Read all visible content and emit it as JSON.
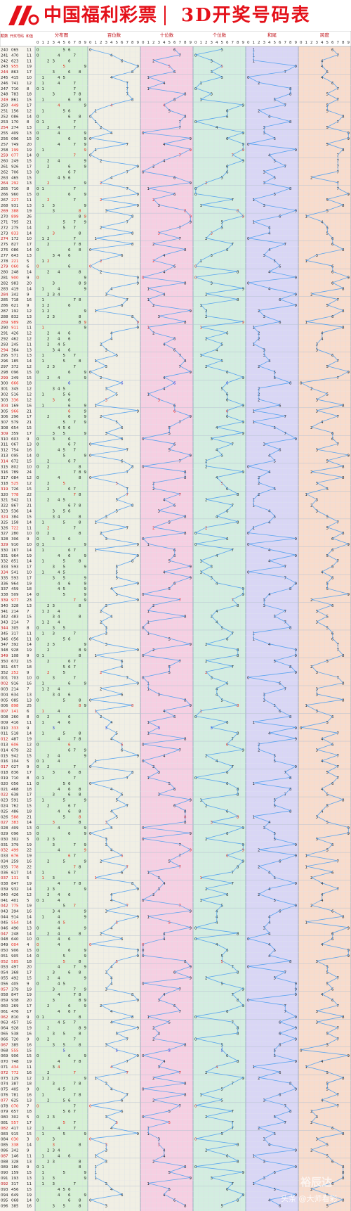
{
  "header": {
    "brand": "中国福利彩票",
    "title": "3D开奖号码表"
  },
  "watermark": {
    "line1": "裕辰达",
    "line2": "头条 @大师看彩"
  },
  "colors": {
    "brand_red": "#e4111a",
    "line": "#4a9df0",
    "red_digit": "#e8231b",
    "blue_digit": "#2323d8"
  },
  "chart_data": {
    "type": "table",
    "columns": {
      "issue": "期数",
      "number": "开奖号码",
      "sum": "和值",
      "zones": [
        "分布图",
        "百位数",
        "十位数",
        "个位数",
        "和尾",
        "跨度"
      ]
    },
    "digits": [
      "0",
      "1",
      "2",
      "3",
      "4",
      "5",
      "6",
      "7",
      "8",
      "9"
    ],
    "rows": [
      [
        "240",
        "065"
      ],
      [
        "241",
        "470"
      ],
      [
        "242",
        "623"
      ],
      [
        "243",
        "955"
      ],
      [
        "244",
        "863"
      ],
      [
        "245",
        "415"
      ],
      [
        "246",
        "741"
      ],
      [
        "247",
        "710"
      ],
      [
        "248",
        "783"
      ],
      [
        "249",
        "861"
      ],
      [
        "250",
        "449"
      ],
      [
        "251",
        "156"
      ],
      [
        "252",
        "086"
      ],
      [
        "253",
        "170"
      ],
      [
        "254",
        "274"
      ],
      [
        "255",
        "409"
      ],
      [
        "256",
        "096"
      ],
      [
        "257",
        "749"
      ],
      [
        "258",
        "199"
      ],
      [
        "259",
        "077"
      ],
      [
        "260",
        "249"
      ],
      [
        "261",
        "926"
      ],
      [
        "262",
        "706"
      ],
      [
        "263",
        "465"
      ],
      [
        "264",
        "292"
      ],
      [
        "265",
        "710"
      ],
      [
        "266",
        "960"
      ],
      [
        "267",
        "227"
      ],
      [
        "268",
        "931"
      ],
      [
        "269",
        "388"
      ],
      [
        "270",
        "899"
      ],
      [
        "271",
        "795"
      ],
      [
        "272",
        "275"
      ],
      [
        "273",
        "833"
      ],
      [
        "274",
        "172"
      ],
      [
        "275",
        "827"
      ],
      [
        "276",
        "086"
      ],
      [
        "277",
        "643"
      ],
      [
        "278",
        "221"
      ],
      [
        "279",
        "060"
      ],
      [
        "280",
        "248"
      ],
      [
        "281",
        "900"
      ],
      [
        "282",
        "983"
      ],
      [
        "283",
        "419"
      ],
      [
        "284",
        "342"
      ],
      [
        "285",
        "718"
      ],
      [
        "286",
        "621"
      ],
      [
        "287",
        "192"
      ],
      [
        "288",
        "832"
      ],
      [
        "289",
        "989"
      ],
      [
        "290",
        "911"
      ],
      [
        "291",
        "426"
      ],
      [
        "292",
        "462"
      ],
      [
        "293",
        "245"
      ],
      [
        "294",
        "364"
      ],
      [
        "295",
        "571"
      ],
      [
        "296",
        "185"
      ],
      [
        "297",
        "372"
      ],
      [
        "298",
        "096"
      ],
      [
        "299",
        "249"
      ],
      [
        "300",
        "666"
      ],
      [
        "301",
        "345"
      ],
      [
        "302",
        "516"
      ],
      [
        "303",
        "336"
      ],
      [
        "304",
        "169"
      ],
      [
        "305",
        "966"
      ],
      [
        "306",
        "296"
      ],
      [
        "307",
        "579"
      ],
      [
        "308",
        "654"
      ],
      [
        "309",
        "359"
      ],
      [
        "310",
        "603"
      ],
      [
        "311",
        "067"
      ],
      [
        "312",
        "754"
      ],
      [
        "313",
        "095"
      ],
      [
        "314",
        "672"
      ],
      [
        "315",
        "802"
      ],
      [
        "316",
        "789"
      ],
      [
        "317",
        "084"
      ],
      [
        "318",
        "525"
      ],
      [
        "319",
        "726"
      ],
      [
        "320",
        "778"
      ],
      [
        "321",
        "542"
      ],
      [
        "322",
        "867"
      ],
      [
        "323",
        "536"
      ],
      [
        "324",
        "384"
      ],
      [
        "325",
        "158"
      ],
      [
        "326",
        "722"
      ],
      [
        "327",
        "280"
      ],
      [
        "328",
        "306"
      ],
      [
        "329",
        "910"
      ],
      [
        "330",
        "167"
      ],
      [
        "331",
        "964"
      ],
      [
        "332",
        "851"
      ],
      [
        "333",
        "593"
      ],
      [
        "334",
        "541"
      ],
      [
        "335",
        "593"
      ],
      [
        "336",
        "964"
      ],
      [
        "337",
        "459"
      ],
      [
        "338",
        "509"
      ],
      [
        "339",
        "977"
      ],
      [
        "340",
        "328"
      ],
      [
        "341",
        "214"
      ],
      [
        "342",
        "483"
      ],
      [
        "343",
        "214"
      ],
      [
        "344",
        "305"
      ],
      [
        "345",
        "317"
      ],
      [
        "346",
        "056"
      ],
      [
        "347",
        "392"
      ],
      [
        "348",
        "928"
      ],
      [
        "349",
        "108"
      ],
      [
        "350",
        "672"
      ],
      [
        "351",
        "657"
      ],
      [
        "352",
        "252"
      ],
      [
        "001",
        "703"
      ],
      [
        "002",
        "916"
      ],
      [
        "003",
        "214"
      ],
      [
        "004",
        "634"
      ],
      [
        "005",
        "085"
      ],
      [
        "006",
        "898"
      ],
      [
        "007",
        "141"
      ],
      [
        "008",
        "260"
      ],
      [
        "009",
        "416"
      ],
      [
        "010",
        "333"
      ],
      [
        "011",
        "518"
      ],
      [
        "012",
        "487"
      ],
      [
        "013",
        "606"
      ],
      [
        "014",
        "679"
      ],
      [
        "015",
        "942"
      ],
      [
        "016",
        "104"
      ],
      [
        "017",
        "027"
      ],
      [
        "018",
        "836"
      ],
      [
        "019",
        "710"
      ],
      [
        "020",
        "056"
      ],
      [
        "021",
        "468"
      ],
      [
        "022",
        "638"
      ],
      [
        "023",
        "591"
      ],
      [
        "024",
        "762"
      ],
      [
        "025",
        "486"
      ],
      [
        "026",
        "588"
      ],
      [
        "027",
        "383"
      ],
      [
        "028",
        "409"
      ],
      [
        "029",
        "096"
      ],
      [
        "030",
        "302"
      ],
      [
        "031",
        "379"
      ],
      [
        "032",
        "499"
      ],
      [
        "033",
        "676"
      ],
      [
        "034",
        "259"
      ],
      [
        "035",
        "778"
      ],
      [
        "036",
        "617"
      ],
      [
        "037",
        "131"
      ],
      [
        "038",
        "847"
      ],
      [
        "039",
        "932"
      ],
      [
        "040",
        "426"
      ],
      [
        "041",
        "401"
      ],
      [
        "042",
        "775"
      ],
      [
        "043",
        "394"
      ],
      [
        "044",
        "914"
      ],
      [
        "045",
        "554"
      ],
      [
        "046",
        "490"
      ],
      [
        "047",
        "248"
      ],
      [
        "048",
        "640"
      ],
      [
        "049",
        "004"
      ],
      [
        "050",
        "906"
      ],
      [
        "051",
        "905"
      ],
      [
        "052",
        "585"
      ],
      [
        "053",
        "497"
      ],
      [
        "054",
        "368"
      ],
      [
        "055",
        "492"
      ],
      [
        "056",
        "405"
      ],
      [
        "057",
        "379"
      ],
      [
        "058",
        "847"
      ],
      [
        "059",
        "938"
      ],
      [
        "060",
        "269"
      ],
      [
        "061",
        "476"
      ],
      [
        "062",
        "810"
      ],
      [
        "063",
        "457"
      ],
      [
        "064",
        "928"
      ],
      [
        "065",
        "538"
      ],
      [
        "066",
        "720"
      ],
      [
        "067",
        "385"
      ],
      [
        "068",
        "555"
      ],
      [
        "069",
        "906"
      ],
      [
        "070",
        "748"
      ],
      [
        "071",
        "434"
      ],
      [
        "072",
        "772"
      ],
      [
        "073",
        "129"
      ],
      [
        "074",
        "387"
      ],
      [
        "075",
        "405"
      ],
      [
        "076",
        "781"
      ],
      [
        "077",
        "625"
      ],
      [
        "078",
        "070"
      ],
      [
        "079",
        "657"
      ],
      [
        "080",
        "302"
      ],
      [
        "081",
        "557"
      ],
      [
        "082",
        "417"
      ],
      [
        "083",
        "915"
      ],
      [
        "084",
        "030"
      ],
      [
        "085",
        "338"
      ],
      [
        "086",
        "342"
      ],
      [
        "087",
        "146"
      ],
      [
        "088",
        "328"
      ],
      [
        "089",
        "180"
      ],
      [
        "090",
        "159"
      ],
      [
        "091",
        "193"
      ],
      [
        "092",
        "317"
      ],
      [
        "093",
        "456"
      ],
      [
        "094",
        "649"
      ],
      [
        "095",
        "068"
      ],
      [
        "096",
        "385"
      ]
    ]
  }
}
